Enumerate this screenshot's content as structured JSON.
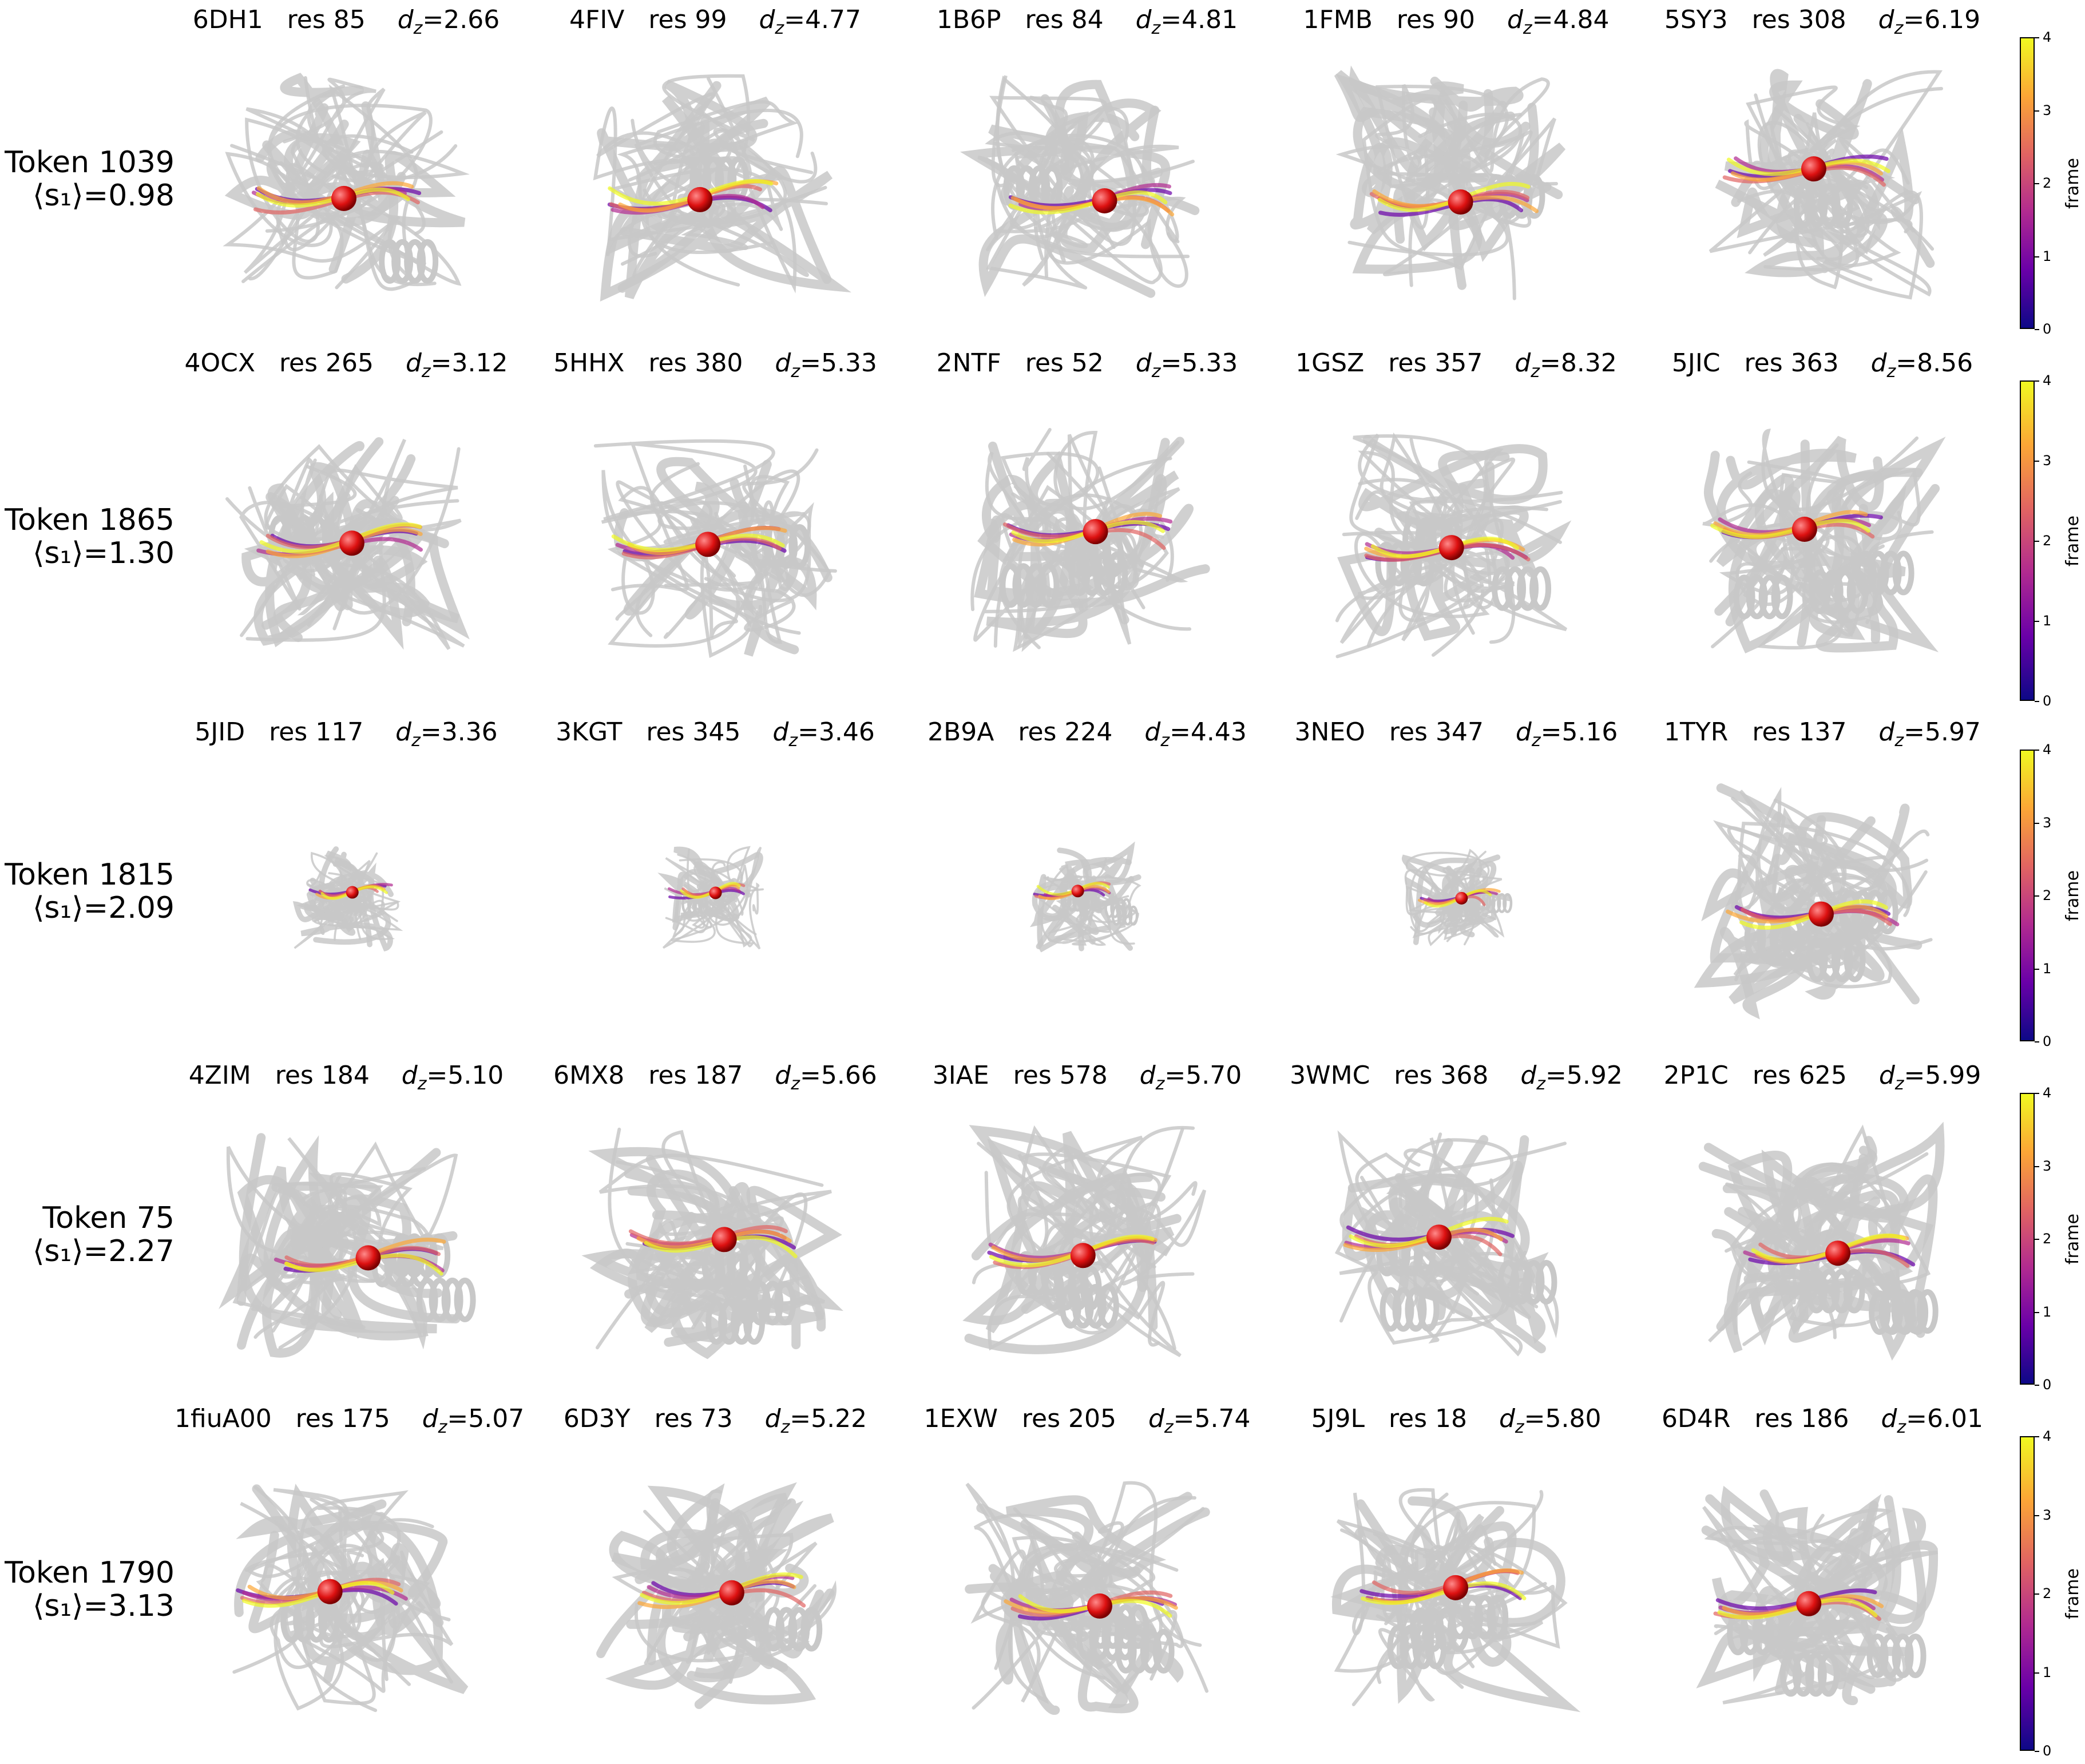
{
  "colorbar": {
    "label": "frame",
    "ticks": [
      "0",
      "1",
      "2",
      "3",
      "4"
    ],
    "colormap": [
      "#0d0887",
      "#6a00a8",
      "#b12a90",
      "#e16462",
      "#fca636",
      "#f0f921"
    ]
  },
  "colors": {
    "cartoon": "#c8c8c8",
    "marker": "#dd1111"
  },
  "rows": [
    {
      "token": "Token 1039",
      "s1": "⟨s₁⟩=0.98",
      "panels": [
        {
          "pdb": "6DH1",
          "res": "res 85",
          "dz": "=2.66"
        },
        {
          "pdb": "4FIV",
          "res": "res 99",
          "dz": "=4.77"
        },
        {
          "pdb": "1B6P",
          "res": "res 84",
          "dz": "=4.81"
        },
        {
          "pdb": "1FMB",
          "res": "res 90",
          "dz": "=4.84"
        },
        {
          "pdb": "5SY3",
          "res": "res 308",
          "dz": "=6.19"
        }
      ]
    },
    {
      "token": "Token 1865",
      "s1": "⟨s₁⟩=1.30",
      "panels": [
        {
          "pdb": "4OCX",
          "res": "res 265",
          "dz": "=3.12"
        },
        {
          "pdb": "5HHX",
          "res": "res 380",
          "dz": "=5.33"
        },
        {
          "pdb": "2NTF",
          "res": "res 52",
          "dz": "=5.33"
        },
        {
          "pdb": "1GSZ",
          "res": "res 357",
          "dz": "=8.32"
        },
        {
          "pdb": "5JIC",
          "res": "res 363",
          "dz": "=8.56"
        }
      ]
    },
    {
      "token": "Token 1815",
      "s1": "⟨s₁⟩=2.09",
      "panels": [
        {
          "pdb": "5JID",
          "res": "res 117",
          "dz": "=3.36"
        },
        {
          "pdb": "3KGT",
          "res": "res 345",
          "dz": "=3.46"
        },
        {
          "pdb": "2B9A",
          "res": "res 224",
          "dz": "=4.43"
        },
        {
          "pdb": "3NEO",
          "res": "res 347",
          "dz": "=5.16"
        },
        {
          "pdb": "1TYR",
          "res": "res 137",
          "dz": "=5.97"
        }
      ]
    },
    {
      "token": "Token 75",
      "s1": "⟨s₁⟩=2.27",
      "panels": [
        {
          "pdb": "4ZIM",
          "res": "res 184",
          "dz": "=5.10"
        },
        {
          "pdb": "6MX8",
          "res": "res 187",
          "dz": "=5.66"
        },
        {
          "pdb": "3IAE",
          "res": "res 578",
          "dz": "=5.70"
        },
        {
          "pdb": "3WMC",
          "res": "res 368",
          "dz": "=5.92"
        },
        {
          "pdb": "2P1C",
          "res": "res 625",
          "dz": "=5.99"
        }
      ]
    },
    {
      "token": "Token 1790",
      "s1": "⟨s₁⟩=3.13",
      "panels": [
        {
          "pdb": "1fiuA00",
          "res": "res 175",
          "dz": "=5.07"
        },
        {
          "pdb": "6D3Y",
          "res": "res 73",
          "dz": "=5.22"
        },
        {
          "pdb": "1EXW",
          "res": "res 205",
          "dz": "=5.74"
        },
        {
          "pdb": "5J9L",
          "res": "res 18",
          "dz": "=5.80"
        },
        {
          "pdb": "6D4R",
          "res": "res 186",
          "dz": "=6.01"
        }
      ]
    }
  ]
}
